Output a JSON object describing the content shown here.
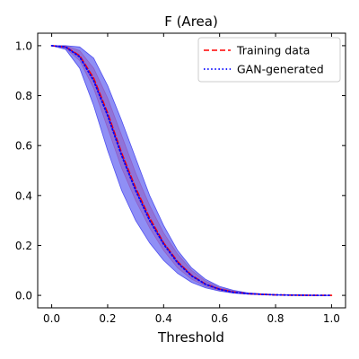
{
  "chart_data": {
    "type": "line",
    "title": "F (Area)",
    "xlabel": "Threshold",
    "ylabel": "",
    "xlim": [
      -0.05,
      1.05
    ],
    "ylim": [
      -0.05,
      1.05
    ],
    "xticks": [
      0.0,
      0.2,
      0.4,
      0.6,
      0.8,
      1.0
    ],
    "yticks": [
      0.0,
      0.2,
      0.4,
      0.6,
      0.8,
      1.0
    ],
    "xtick_labels": [
      "0.0",
      "0.2",
      "0.4",
      "0.6",
      "0.8",
      "1.0"
    ],
    "ytick_labels": [
      "0.0",
      "0.2",
      "0.4",
      "0.6",
      "0.8",
      "1.0"
    ],
    "grid": false,
    "legend_position": "top-right",
    "x": [
      0.0,
      0.05,
      0.1,
      0.15,
      0.2,
      0.25,
      0.3,
      0.35,
      0.4,
      0.45,
      0.5,
      0.55,
      0.6,
      0.65,
      0.7,
      0.75,
      0.8,
      0.85,
      0.9,
      0.95,
      1.0
    ],
    "series": [
      {
        "name": "Training data",
        "color": "#ff0000",
        "line_style": "dashed",
        "values": [
          1.0,
          0.995,
          0.96,
          0.87,
          0.73,
          0.57,
          0.43,
          0.31,
          0.21,
          0.135,
          0.08,
          0.045,
          0.025,
          0.013,
          0.007,
          0.004,
          0.002,
          0.001,
          0.0005,
          0.0,
          0.0
        ],
        "band_lower": [
          1.0,
          0.99,
          0.94,
          0.83,
          0.67,
          0.51,
          0.38,
          0.27,
          0.18,
          0.11,
          0.065,
          0.036,
          0.019,
          0.01,
          0.005,
          0.003,
          0.0015,
          0.0007,
          0.0,
          0.0,
          0.0
        ],
        "band_upper": [
          1.0,
          1.0,
          0.98,
          0.91,
          0.79,
          0.64,
          0.49,
          0.36,
          0.25,
          0.165,
          0.1,
          0.057,
          0.031,
          0.017,
          0.009,
          0.005,
          0.0025,
          0.0013,
          0.0007,
          0.0003,
          0.0
        ],
        "band_color": "#ff7f7f"
      },
      {
        "name": "GAN-generated",
        "color": "#0000ff",
        "line_style": "dotted",
        "values": [
          1.0,
          0.995,
          0.955,
          0.86,
          0.72,
          0.56,
          0.42,
          0.3,
          0.205,
          0.13,
          0.078,
          0.044,
          0.024,
          0.012,
          0.007,
          0.004,
          0.002,
          0.001,
          0.0005,
          0.0,
          0.0
        ],
        "band_lower": [
          1.0,
          0.985,
          0.91,
          0.76,
          0.58,
          0.42,
          0.3,
          0.21,
          0.14,
          0.088,
          0.052,
          0.03,
          0.017,
          0.009,
          0.005,
          0.003,
          0.0015,
          0.0007,
          0.0,
          0.0,
          0.0
        ],
        "band_upper": [
          1.0,
          1.0,
          0.995,
          0.95,
          0.84,
          0.7,
          0.55,
          0.4,
          0.28,
          0.18,
          0.11,
          0.064,
          0.036,
          0.02,
          0.01,
          0.006,
          0.003,
          0.0015,
          0.0008,
          0.0003,
          0.0
        ],
        "band_color": "#4444ee"
      }
    ]
  }
}
